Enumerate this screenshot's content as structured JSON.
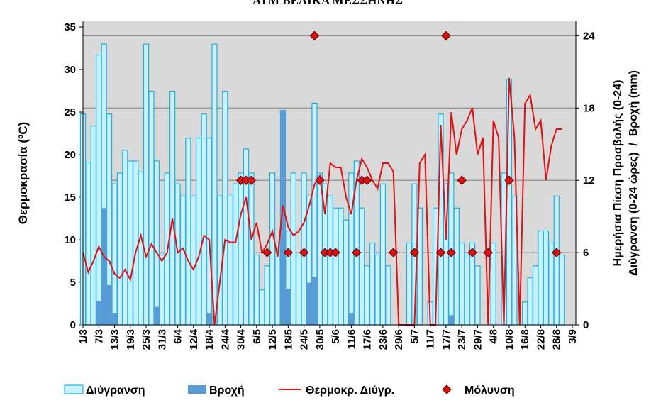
{
  "chart_data": {
    "type": "combo",
    "title": "ΑΤΜ ΒΕΛΙΚΑ ΜΕΣΣΗΝΗΣ",
    "ylabel": "Θερμοκρασία (ºC)",
    "y2label": [
      "Ημερήσια Πίεση Προσβολής (0-24)",
      "Διύγρανση (0-24 ώρες)  /  Βροχή (mm)"
    ],
    "categories": [
      "1/3",
      null,
      null,
      "7/3",
      null,
      null,
      "13/3",
      null,
      null,
      "19/3",
      null,
      null,
      "25/3",
      null,
      null,
      "31/3",
      null,
      null,
      "6/4",
      null,
      null,
      "12/4",
      null,
      null,
      "18/4",
      null,
      null,
      "24/4",
      null,
      null,
      "30/4",
      null,
      null,
      "6/5",
      null,
      null,
      "12/5",
      null,
      null,
      "18/5",
      null,
      null,
      "24/5",
      null,
      null,
      "30/5",
      null,
      null,
      "5/6",
      null,
      null,
      "11/6",
      null,
      null,
      "17/6",
      null,
      null,
      "23/6",
      null,
      null,
      "29/6",
      null,
      null,
      "5/7",
      null,
      null,
      "11/7",
      null,
      null,
      "17/7",
      null,
      null,
      "23/7",
      null,
      null,
      "29/7",
      null,
      null,
      "4/8",
      null,
      null,
      "10/8",
      null,
      null,
      "16/8",
      null,
      null,
      "22/8",
      null,
      null,
      "28/8",
      null,
      null,
      "3/9"
    ],
    "ylim": [
      0,
      35.67
    ],
    "yticks": [
      0,
      5,
      10,
      15,
      20,
      25,
      30,
      35
    ],
    "y2lim": [
      0,
      25.2
    ],
    "y2ticks": [
      0,
      6,
      12,
      18,
      24
    ],
    "grid": true,
    "series": [
      {
        "name": "Διύγρανση",
        "type": "bar",
        "axis": "y2",
        "color": "#c9f0fb",
        "edge": "#1fb0e0",
        "values": [
          17.5,
          13.5,
          16.5,
          22.4,
          23.3,
          17.5,
          11.7,
          12.6,
          14.5,
          13.6,
          13.6,
          12.7,
          23.3,
          19.4,
          13.6,
          5.8,
          12.6,
          19.4,
          11.7,
          10.7,
          15.5,
          10.7,
          15.5,
          17.5,
          15.5,
          23.3,
          10.7,
          19.4,
          10.7,
          11.7,
          12.6,
          14.6,
          12.6,
          5.8,
          2.9,
          4.9,
          12.6,
          6.8,
          17.8,
          7.8,
          12.6,
          5.8,
          12.6,
          10.7,
          18.4,
          12.6,
          11.7,
          10.7,
          9.7,
          9.7,
          8.7,
          12.6,
          13.6,
          9.7,
          4.9,
          6.8,
          5.8,
          11.7,
          4.9,
          0,
          0,
          0,
          6.8,
          11.7,
          9.7,
          0,
          1.9,
          9.7,
          17.5,
          11.7,
          12.6,
          9.7,
          6.8,
          5.8,
          6.8,
          4.9,
          0,
          0,
          6.8,
          0,
          12.6,
          20.4,
          10.7,
          0,
          1.9,
          3.9,
          4.9,
          7.8,
          7.8,
          6.8,
          10.7,
          5.8,
          null,
          null
        ]
      },
      {
        "name": "Βροχή",
        "type": "bar",
        "axis": "y2",
        "color": "#5b9bd5",
        "values": [
          0,
          0,
          0,
          2,
          9.7,
          3.3,
          1,
          0,
          0,
          0,
          0,
          0,
          0,
          0,
          1.5,
          0,
          0,
          0,
          0,
          0,
          0,
          0,
          0,
          0,
          1,
          0,
          0,
          0,
          0,
          0,
          0,
          0,
          0,
          0,
          0,
          0,
          0,
          0,
          17.8,
          3,
          0,
          0,
          0,
          3.5,
          4,
          0,
          0,
          0,
          0,
          0,
          0,
          1,
          0,
          0,
          0,
          0,
          0,
          0,
          0,
          0,
          0,
          0,
          0,
          0,
          0,
          0,
          0,
          0,
          0,
          0,
          0.8,
          0,
          0,
          0,
          0,
          0,
          0,
          0,
          0,
          0,
          0,
          0,
          0,
          0,
          0,
          0,
          0,
          0,
          0,
          0,
          0,
          0,
          null,
          null
        ]
      },
      {
        "name": "Θερμοκρ. Διύγρ.",
        "type": "line",
        "color": "#e31010",
        "values": [
          8.5,
          6.2,
          7.5,
          9.2,
          8,
          7.5,
          6,
          5.5,
          6.5,
          5.3,
          8.5,
          10.5,
          8,
          9.5,
          8.5,
          7.5,
          8.5,
          12.5,
          8.5,
          9,
          7.5,
          6.5,
          8,
          10.5,
          10,
          0,
          5,
          10,
          9.7,
          9.7,
          13,
          15,
          10,
          12,
          8.5,
          9.5,
          11,
          8,
          14,
          11.5,
          10.5,
          11,
          12,
          14,
          16.5,
          17.5,
          13,
          19,
          18.5,
          18.5,
          15,
          13,
          17,
          19.5,
          18.5,
          17,
          16,
          19,
          19,
          18,
          0,
          0,
          0,
          0,
          19,
          20,
          0,
          0,
          23.5,
          10,
          25,
          20,
          23,
          24,
          25.5,
          20,
          22,
          0,
          24,
          22,
          0,
          29,
          22,
          0,
          26,
          27,
          23,
          24,
          17,
          21,
          23,
          23,
          null,
          null
        ]
      },
      {
        "name": "Μόλυνση",
        "type": "scatter",
        "axis": "y2",
        "color": "#e31010",
        "values": [
          null,
          null,
          null,
          null,
          null,
          null,
          null,
          null,
          null,
          null,
          null,
          null,
          null,
          null,
          null,
          null,
          null,
          null,
          null,
          null,
          null,
          null,
          null,
          null,
          null,
          null,
          null,
          null,
          null,
          null,
          12,
          12,
          12,
          null,
          null,
          6,
          null,
          null,
          null,
          6,
          null,
          null,
          6,
          null,
          24,
          12,
          6,
          6,
          6,
          null,
          null,
          null,
          6,
          12,
          12,
          null,
          null,
          null,
          null,
          6,
          null,
          null,
          null,
          6,
          null,
          null,
          null,
          null,
          6,
          24,
          6,
          null,
          12,
          null,
          6,
          null,
          null,
          6,
          null,
          null,
          null,
          12,
          null,
          null,
          null,
          null,
          null,
          null,
          null,
          null,
          6,
          null,
          null,
          null
        ]
      }
    ]
  }
}
